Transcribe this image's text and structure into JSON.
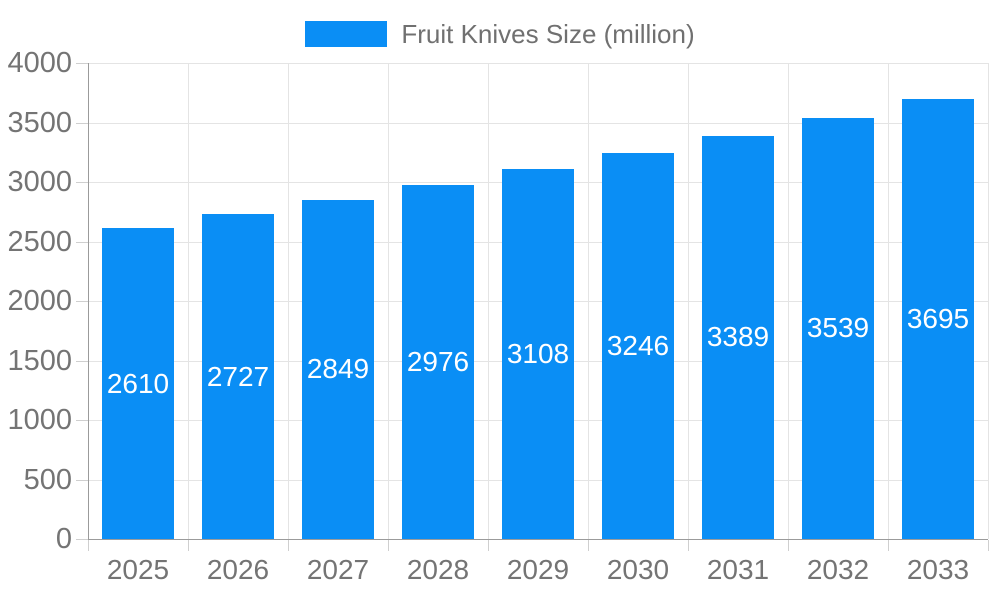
{
  "legend": {
    "label": "Fruit Knives Size (million)"
  },
  "colors": {
    "bar": "#0a8ef5",
    "grid": "#e4e4e4",
    "axis": "#9b9b9b",
    "tick": "#cfcfcf",
    "axis_text": "#747474",
    "legend_text": "#707070",
    "value_text": "#ffffff",
    "bg": "#ffffff"
  },
  "chart_data": {
    "type": "bar",
    "title": "Fruit Knives Size (million)",
    "categories": [
      "2025",
      "2026",
      "2027",
      "2028",
      "2029",
      "2030",
      "2031",
      "2032",
      "2033"
    ],
    "values": [
      2610,
      2727,
      2849,
      2976,
      3108,
      3246,
      3389,
      3539,
      3695
    ],
    "xlabel": "",
    "ylabel": "",
    "ylim": [
      0,
      4000
    ],
    "ytick_step": 500,
    "yticks": [
      0,
      500,
      1000,
      1500,
      2000,
      2500,
      3000,
      3500,
      4000
    ],
    "grid": true,
    "legend_position": "top-center",
    "bar_label_position": "inside-center"
  }
}
